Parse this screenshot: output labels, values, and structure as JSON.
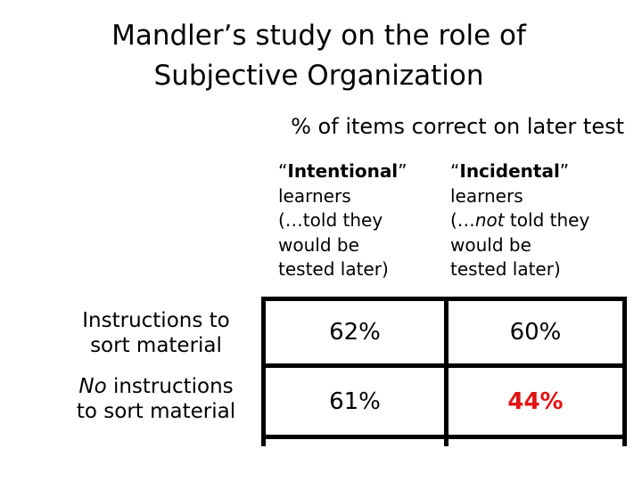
{
  "slide": {
    "title": "Mandler’s study on the role of\nSubjective Organization",
    "subtitle": "% of items correct on later test",
    "colors": {
      "background": "#ffffff",
      "text": "#000000",
      "highlight": "#e21313"
    },
    "table": {
      "col_headers": [
        {
          "quote_open": "“",
          "term": "Intentional",
          "quote_close": "”",
          "rest": "\nlearners\n(…told they\nwould be\ntested later)"
        },
        {
          "quote_open": "“",
          "term": "Incidental",
          "quote_close": "”",
          "rest_before": "\nlearners\n(…",
          "emphasis": "not",
          "rest_after": " told they\nwould be\ntested later)"
        }
      ],
      "row_headers": [
        {
          "text": "Instructions to\nsort material"
        },
        {
          "emphasis": "No",
          "text": " instructions\nto sort material"
        }
      ],
      "cells": [
        [
          "62%",
          "60%"
        ],
        [
          "61%",
          "44%"
        ]
      ]
    },
    "chart_data": {
      "type": "table",
      "title": "% of items correct on later test",
      "columns": [
        "“Intentional” learners (…told they would be tested later)",
        "“Incidental” learners (…not told they would be tested later)"
      ],
      "rows": [
        "Instructions to sort material",
        "No instructions to sort material"
      ],
      "values": [
        [
          "62%",
          "60%"
        ],
        [
          "61%",
          "44%"
        ]
      ],
      "highlighted_cell": {
        "row": 1,
        "col": 1,
        "value": "44%",
        "color": "#e21313"
      }
    }
  }
}
